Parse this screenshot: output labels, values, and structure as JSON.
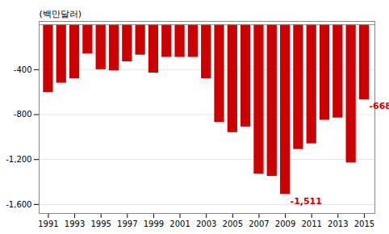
{
  "chart_data": {
    "type": "bar",
    "ylabel": "(백만달러)",
    "x": [
      1991,
      1992,
      1993,
      1994,
      1995,
      1996,
      1997,
      1998,
      1999,
      2000,
      2001,
      2002,
      2003,
      2004,
      2005,
      2006,
      2007,
      2008,
      2009,
      2010,
      2011,
      2012,
      2013,
      2014,
      2015
    ],
    "values": [
      -604,
      -520,
      -480,
      -260,
      -400,
      -410,
      -330,
      -270,
      -430,
      -290,
      -290,
      -290,
      -480,
      -870,
      -960,
      -910,
      -1330,
      -1350,
      -1511,
      -1110,
      -1060,
      -850,
      -830,
      -1230,
      -668
    ],
    "color": "#cc0000",
    "xlim": [
      1990.3,
      2015.8
    ],
    "xticks": [
      1991,
      1993,
      1995,
      1997,
      1999,
      2001,
      2003,
      2005,
      2007,
      2009,
      2011,
      2013,
      2015
    ],
    "ylim": [
      -1680,
      30
    ],
    "yticks": [
      -400,
      -800,
      {
        "value": -1200,
        "label": "-1,200"
      },
      {
        "value": -1600,
        "label": "-1,600"
      }
    ],
    "grid": true,
    "annotations": [
      {
        "x": 2009,
        "y": -1511,
        "text": "-1,511",
        "color": "#cc0000"
      },
      {
        "x": 2015,
        "y": -668,
        "text": "-668",
        "color": "#cc0000"
      }
    ]
  }
}
